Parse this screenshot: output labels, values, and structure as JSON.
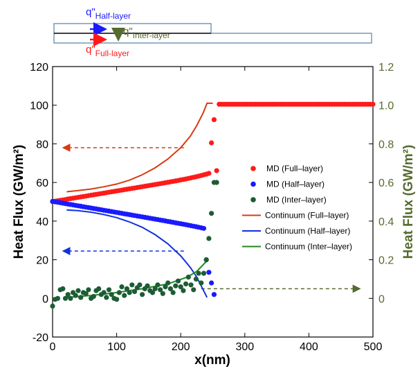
{
  "chart_data": {
    "type": "scatter",
    "title": "",
    "xlabel": "x(nm)",
    "ylabel_left": "Heat Flux (GW/m²)",
    "ylabel_right": "Heat Flux (GW/m²)",
    "xlim": [
      0,
      500
    ],
    "ylim_left": [
      -20,
      120
    ],
    "ylim_right": [
      -0.2,
      1.2
    ],
    "x_ticks": [
      "0",
      "100",
      "200",
      "300",
      "400",
      "500"
    ],
    "y_ticks_left": [
      "-20",
      "0",
      "20",
      "40",
      "60",
      "80",
      "100",
      "120"
    ],
    "y_ticks_right": [
      "0",
      "0.2",
      "0.4",
      "0.6",
      "0.8",
      "1.0",
      "1.2"
    ],
    "colors": {
      "full": "#ff1a1a",
      "half": "#1a1aff",
      "inter": "#1d5c34",
      "full_line": "#d83a10",
      "half_line": "#1030e0",
      "inter_line": "#1e8a1e",
      "right_axis": "#556b2f"
    },
    "schematic": {
      "q_prefix": "q\"",
      "half_sub": "Half-layer",
      "inter_sub": "Inter-layer",
      "full_sub": "Full-layer"
    },
    "legend": [
      {
        "label": "MD (Full–layer)",
        "kind": "marker",
        "series": "full"
      },
      {
        "label": "MD (Half–layer)",
        "kind": "marker",
        "series": "half"
      },
      {
        "label": "MD (Inter–layer)",
        "kind": "marker",
        "series": "inter"
      },
      {
        "label": "Continuum (Full–layer)",
        "kind": "line",
        "series": "full_line"
      },
      {
        "label": "Continuum (Half–layer)",
        "kind": "line",
        "series": "half_line"
      },
      {
        "label": "Continuum (Inter–layer)",
        "kind": "line",
        "series": "inter_line"
      }
    ],
    "arrows": [
      {
        "series": "full_line",
        "y": 78,
        "from_x": 205,
        "to_x": 18
      },
      {
        "series": "half_line",
        "y": 24.5,
        "from_x": 205,
        "to_x": 18
      },
      {
        "series": "right_axis",
        "y": 5,
        "from_x": 232,
        "to_x": 478
      }
    ],
    "series": [
      {
        "name": "MD (Full-layer)",
        "axis": "left",
        "color_key": "full",
        "kind": "marker",
        "x_start": 0,
        "x_step": 4,
        "x_end": 500,
        "model": {
          "type": "rise",
          "a": 50.1,
          "b": 0.055,
          "c": 1.03,
          "tau": 25,
          "plateau_from": 257,
          "plateau_value": 100.5
        },
        "overrides": [
          [
            248,
            80.5
          ],
          [
            252,
            92.5
          ]
        ]
      },
      {
        "name": "MD (Half-layer)",
        "axis": "left",
        "color_key": "half",
        "kind": "marker",
        "x_start": 0,
        "x_step": 4,
        "x_end": 236,
        "model": {
          "type": "fall",
          "a": 50.2,
          "b": 0.057,
          "c": 0.55,
          "tau": 32
        },
        "extra_points": [
          [
            240,
            20
          ],
          [
            244,
            13.5
          ],
          [
            248,
            8
          ],
          [
            252,
            2
          ]
        ]
      },
      {
        "name": "MD (Inter-layer)",
        "axis": "right",
        "color_key": "inter",
        "kind": "marker",
        "points": [
          [
            0,
            -0.04
          ],
          [
            4,
            -0.005
          ],
          [
            8,
            0.0
          ],
          [
            12,
            0.045
          ],
          [
            16,
            0.05
          ],
          [
            20,
            0.0
          ],
          [
            24,
            0.02
          ],
          [
            28,
            0.0
          ],
          [
            32,
            0.03
          ],
          [
            36,
            0.015
          ],
          [
            40,
            0.04
          ],
          [
            44,
            0.005
          ],
          [
            48,
            0.03
          ],
          [
            52,
            0.025
          ],
          [
            56,
            0.045
          ],
          [
            60,
            0.0
          ],
          [
            64,
            0.01
          ],
          [
            68,
            0.04
          ],
          [
            72,
            0.05
          ],
          [
            76,
            0.02
          ],
          [
            80,
            0.03
          ],
          [
            84,
            0.005
          ],
          [
            88,
            0.045
          ],
          [
            92,
            0.02
          ],
          [
            96,
            0.0
          ],
          [
            100,
            -0.005
          ],
          [
            104,
            0.03
          ],
          [
            108,
            0.06
          ],
          [
            112,
            0.015
          ],
          [
            116,
            0.05
          ],
          [
            120,
            0.03
          ],
          [
            124,
            0.07
          ],
          [
            128,
            0.035
          ],
          [
            132,
            0.055
          ],
          [
            136,
            0.07
          ],
          [
            140,
            0.02
          ],
          [
            144,
            0.05
          ],
          [
            148,
            0.065
          ],
          [
            152,
            0.04
          ],
          [
            156,
            0.03
          ],
          [
            160,
            0.05
          ],
          [
            164,
            0.07
          ],
          [
            168,
            0.045
          ],
          [
            172,
            0.025
          ],
          [
            176,
            0.06
          ],
          [
            180,
            0.08
          ],
          [
            184,
            0.05
          ],
          [
            188,
            0.03
          ],
          [
            192,
            0.065
          ],
          [
            196,
            0.09
          ],
          [
            200,
            0.06
          ],
          [
            204,
            0.04
          ],
          [
            208,
            0.075
          ],
          [
            212,
            0.11
          ],
          [
            216,
            0.07
          ],
          [
            220,
            0.045
          ],
          [
            224,
            0.1
          ],
          [
            228,
            0.13
          ],
          [
            232,
            0.08
          ],
          [
            236,
            0.13
          ],
          [
            240,
            0.2
          ],
          [
            244,
            0.31
          ],
          [
            248,
            0.44
          ],
          [
            252,
            0.6
          ],
          [
            256,
            0.6
          ]
        ]
      },
      {
        "name": "Continuum (Full-layer)",
        "axis": "left",
        "color_key": "full_line",
        "kind": "line",
        "points": [
          [
            22,
            55.2
          ],
          [
            40,
            55.8
          ],
          [
            60,
            56.6
          ],
          [
            80,
            57.8
          ],
          [
            100,
            59.2
          ],
          [
            120,
            61.2
          ],
          [
            140,
            64.0
          ],
          [
            160,
            67.6
          ],
          [
            180,
            72.2
          ],
          [
            200,
            78.0
          ],
          [
            215,
            84.0
          ],
          [
            225,
            89.5
          ],
          [
            235,
            96.0
          ],
          [
            241,
            101.0
          ],
          [
            250,
            101.0
          ]
        ]
      },
      {
        "name": "Continuum (Half-layer)",
        "axis": "left",
        "color_key": "half_line",
        "kind": "line",
        "points": [
          [
            22,
            45.8
          ],
          [
            40,
            45.4
          ],
          [
            60,
            44.6
          ],
          [
            80,
            43.4
          ],
          [
            100,
            41.8
          ],
          [
            120,
            39.6
          ],
          [
            140,
            36.8
          ],
          [
            160,
            33.0
          ],
          [
            180,
            28.2
          ],
          [
            200,
            22.0
          ],
          [
            215,
            16.0
          ],
          [
            225,
            11.0
          ],
          [
            235,
            4.5
          ],
          [
            241,
            0.5
          ]
        ]
      },
      {
        "name": "Continuum (Inter-layer)",
        "axis": "right",
        "color_key": "inter_line",
        "kind": "line",
        "points": [
          [
            22,
            0.005
          ],
          [
            60,
            0.015
          ],
          [
            100,
            0.03
          ],
          [
            140,
            0.05
          ],
          [
            180,
            0.075
          ],
          [
            210,
            0.11
          ],
          [
            225,
            0.14
          ],
          [
            241,
            0.195
          ]
        ]
      }
    ]
  }
}
